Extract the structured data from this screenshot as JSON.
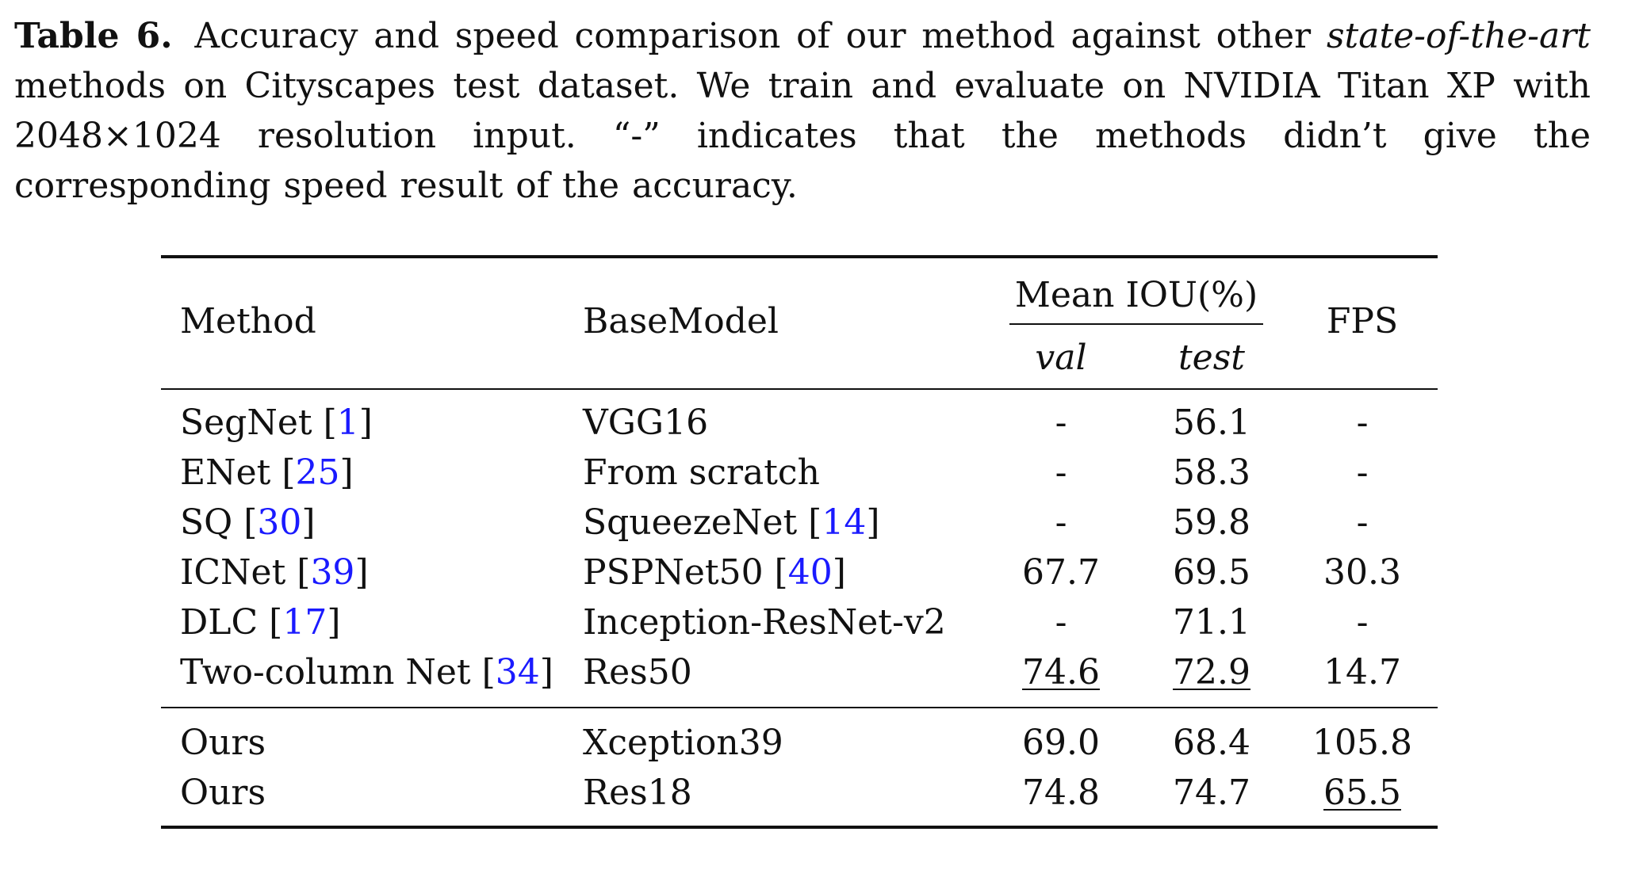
{
  "caption": {
    "label": "Table 6.",
    "text_before": "Accuracy and speed comparison of our method against other",
    "emphasis": "state-of-the-art",
    "text_after": "methods on Cityscapes test dataset. We train and evaluate on NVIDIA Titan XP with 2048×1024 resolution input. “-” indicates that the methods didn’t give the corresponding speed result of the accuracy."
  },
  "table": {
    "headers": {
      "method": "Method",
      "basemodel": "BaseModel",
      "mean_iou": "Mean IOU(%)",
      "val": "val",
      "test": "test",
      "fps": "FPS"
    },
    "rows": [
      {
        "method": "SegNet",
        "method_cite": "1",
        "base": "VGG16",
        "base_cite": "",
        "val": "-",
        "test": "56.1",
        "fps": "-"
      },
      {
        "method": "ENet",
        "method_cite": "25",
        "base": "From scratch",
        "base_cite": "",
        "val": "-",
        "test": "58.3",
        "fps": "-"
      },
      {
        "method": "SQ",
        "method_cite": "30",
        "base": "SqueezeNet",
        "base_cite": "14",
        "val": "-",
        "test": "59.8",
        "fps": "-"
      },
      {
        "method": "ICNet",
        "method_cite": "39",
        "base": "PSPNet50",
        "base_cite": "40",
        "val": "67.7",
        "test": "69.5",
        "fps": "30.3"
      },
      {
        "method": "DLC",
        "method_cite": "17",
        "base": "Inception-ResNet-v2",
        "base_cite": "",
        "val": "-",
        "test": "71.1",
        "fps": "-"
      },
      {
        "method": "Two-column Net",
        "method_cite": "34",
        "base": "Res50",
        "base_cite": "",
        "val": "74.6",
        "test": "72.9",
        "fps": "14.7"
      }
    ],
    "ours_rows": [
      {
        "method": "Ours",
        "base": "Xception39",
        "val": "69.0",
        "test": "68.4",
        "fps": "105.8"
      },
      {
        "method": "Ours",
        "base": "Res18",
        "val": "74.8",
        "test": "74.7",
        "fps": "65.5"
      }
    ]
  }
}
